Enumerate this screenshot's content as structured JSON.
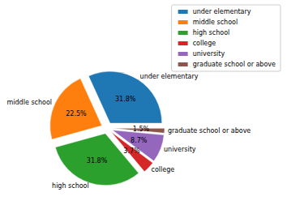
{
  "chart_data": {
    "type": "pie",
    "categories": [
      "under elementary",
      "middle school",
      "high school",
      "college",
      "university",
      "graduate school or above"
    ],
    "values": [
      31.8,
      22.5,
      31.8,
      3.7,
      8.7,
      1.5
    ],
    "value_labels": [
      "31.8%",
      "22.5%",
      "31.8%",
      "3.7%",
      "8.7%",
      "1.5%"
    ],
    "colors": [
      "#1f77b4",
      "#ff7f0e",
      "#2ca02c",
      "#d62728",
      "#9467bd",
      "#8c564b"
    ],
    "data_labels": true,
    "legend": "upper right"
  }
}
